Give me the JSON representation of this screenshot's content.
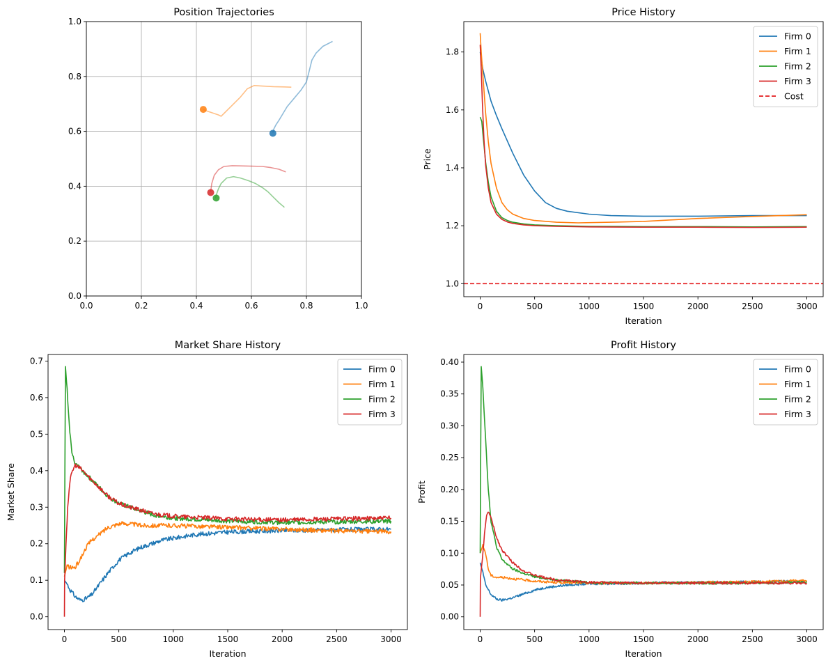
{
  "chart_data": [
    {
      "type": "line",
      "title": "Position Trajectories",
      "xlabel": "",
      "ylabel": "",
      "xlim": [
        0,
        1
      ],
      "ylim": [
        0,
        1
      ],
      "xticks": [
        0.0,
        0.2,
        0.4,
        0.6,
        0.8,
        1.0
      ],
      "yticks": [
        0.0,
        0.2,
        0.4,
        0.6,
        0.8,
        1.0
      ],
      "xtick_labels": [
        "0.0",
        "0.2",
        "0.4",
        "0.6",
        "0.8",
        "1.0"
      ],
      "ytick_labels": [
        "0.0",
        "0.2",
        "0.4",
        "0.6",
        "0.8",
        "1.0"
      ],
      "grid": true,
      "series": [
        {
          "color": "#1f77b4",
          "x": [
            0.895,
            0.86,
            0.835,
            0.82,
            0.81,
            0.8,
            0.78,
            0.755,
            0.73,
            0.712,
            0.7,
            0.69,
            0.682,
            0.678
          ],
          "y": [
            0.928,
            0.91,
            0.885,
            0.86,
            0.82,
            0.78,
            0.75,
            0.72,
            0.69,
            0.66,
            0.64,
            0.625,
            0.61,
            0.595
          ],
          "final": [
            0.678,
            0.593
          ]
        },
        {
          "color": "#ff7f0e",
          "x": [
            0.745,
            0.72,
            0.68,
            0.64,
            0.61,
            0.585,
            0.56,
            0.53,
            0.5,
            0.49,
            0.48,
            0.465,
            0.45,
            0.435,
            0.425
          ],
          "y": [
            0.761,
            0.762,
            0.763,
            0.765,
            0.767,
            0.755,
            0.725,
            0.695,
            0.665,
            0.655,
            0.66,
            0.665,
            0.67,
            0.675,
            0.68
          ],
          "final": [
            0.425,
            0.68
          ]
        },
        {
          "color": "#2ca02c",
          "x": [
            0.72,
            0.7,
            0.68,
            0.66,
            0.64,
            0.615,
            0.59,
            0.56,
            0.535,
            0.51,
            0.49,
            0.48,
            0.473,
            0.47
          ],
          "y": [
            0.323,
            0.34,
            0.36,
            0.38,
            0.395,
            0.41,
            0.42,
            0.43,
            0.435,
            0.43,
            0.41,
            0.39,
            0.37,
            0.357
          ],
          "final": [
            0.472,
            0.357
          ]
        },
        {
          "color": "#d62728",
          "x": [
            0.725,
            0.7,
            0.67,
            0.64,
            0.6,
            0.56,
            0.53,
            0.5,
            0.48,
            0.465,
            0.456,
            0.452
          ],
          "y": [
            0.452,
            0.462,
            0.468,
            0.472,
            0.473,
            0.474,
            0.475,
            0.472,
            0.46,
            0.44,
            0.41,
            0.38
          ],
          "final": [
            0.452,
            0.377
          ]
        }
      ]
    },
    {
      "type": "line",
      "title": "Price History",
      "xlabel": "Iteration",
      "ylabel": "Price",
      "xlim": [
        -150,
        3150
      ],
      "ylim": [
        0.955,
        1.905
      ],
      "xticks": [
        0,
        500,
        1000,
        1500,
        2000,
        2500,
        3000
      ],
      "yticks": [
        1.0,
        1.2,
        1.4,
        1.6,
        1.8
      ],
      "xtick_labels": [
        "0",
        "500",
        "1000",
        "1500",
        "2000",
        "2500",
        "3000"
      ],
      "ytick_labels": [
        "1.0",
        "1.2",
        "1.4",
        "1.6",
        "1.8"
      ],
      "grid": false,
      "legend": "top-right",
      "series": [
        {
          "name": "Firm 0",
          "color": "#1f77b4",
          "x": [
            0,
            25,
            50,
            100,
            150,
            200,
            300,
            400,
            500,
            600,
            700,
            800,
            1000,
            1200,
            1500,
            2000,
            2500,
            3000
          ],
          "y": [
            1.8,
            1.74,
            1.7,
            1.63,
            1.58,
            1.535,
            1.45,
            1.375,
            1.32,
            1.28,
            1.26,
            1.25,
            1.24,
            1.235,
            1.233,
            1.233,
            1.235,
            1.235
          ]
        },
        {
          "name": "Firm 1",
          "color": "#ff7f0e",
          "x": [
            0,
            10,
            25,
            50,
            75,
            100,
            150,
            200,
            250,
            300,
            400,
            500,
            700,
            900,
            1200,
            1500,
            2000,
            2500,
            3000
          ],
          "y": [
            1.865,
            1.8,
            1.72,
            1.59,
            1.49,
            1.415,
            1.33,
            1.28,
            1.255,
            1.24,
            1.225,
            1.218,
            1.212,
            1.21,
            1.212,
            1.215,
            1.225,
            1.232,
            1.238
          ]
        },
        {
          "name": "Firm 2",
          "color": "#2ca02c",
          "x": [
            0,
            15,
            30,
            50,
            75,
            100,
            150,
            200,
            250,
            300,
            400,
            500,
            700,
            1000,
            1500,
            2000,
            2500,
            3000
          ],
          "y": [
            1.575,
            1.56,
            1.5,
            1.42,
            1.35,
            1.3,
            1.25,
            1.228,
            1.218,
            1.212,
            1.206,
            1.203,
            1.2,
            1.198,
            1.197,
            1.197,
            1.196,
            1.197
          ]
        },
        {
          "name": "Firm 3",
          "color": "#d62728",
          "x": [
            0,
            10,
            20,
            35,
            50,
            75,
            100,
            150,
            200,
            250,
            300,
            400,
            500,
            700,
            1000,
            1500,
            2000,
            2500,
            3000
          ],
          "y": [
            1.825,
            1.74,
            1.63,
            1.5,
            1.41,
            1.33,
            1.28,
            1.24,
            1.222,
            1.213,
            1.208,
            1.203,
            1.2,
            1.198,
            1.196,
            1.195,
            1.195,
            1.194,
            1.195
          ]
        },
        {
          "name": "Cost",
          "color": "#e31a1c",
          "dashed": true,
          "x": [
            -150,
            3150
          ],
          "y": [
            1.0,
            1.0
          ]
        }
      ]
    },
    {
      "type": "line",
      "title": "Market Share History",
      "xlabel": "Iteration",
      "ylabel": "Market Share",
      "xlim": [
        -150,
        3150
      ],
      "ylim": [
        -0.035,
        0.718
      ],
      "xticks": [
        0,
        500,
        1000,
        1500,
        2000,
        2500,
        3000
      ],
      "yticks": [
        0.0,
        0.1,
        0.2,
        0.3,
        0.4,
        0.5,
        0.6,
        0.7
      ],
      "xtick_labels": [
        "0",
        "500",
        "1000",
        "1500",
        "2000",
        "2500",
        "3000"
      ],
      "ytick_labels": [
        "0.0",
        "0.1",
        "0.2",
        "0.3",
        "0.4",
        "0.5",
        "0.6",
        "0.7"
      ],
      "grid": false,
      "legend": "top-right",
      "series": [
        {
          "name": "Firm 0",
          "color": "#1f77b4",
          "x": [
            0,
            25,
            50,
            100,
            150,
            200,
            250,
            300,
            400,
            500,
            600,
            700,
            800,
            900,
            1000,
            1200,
            1500,
            2000,
            2500,
            3000
          ],
          "y": [
            0.1,
            0.09,
            0.075,
            0.055,
            0.045,
            0.05,
            0.06,
            0.08,
            0.12,
            0.155,
            0.175,
            0.19,
            0.2,
            0.21,
            0.215,
            0.225,
            0.232,
            0.236,
            0.238,
            0.24
          ]
        },
        {
          "name": "Firm 1",
          "color": "#ff7f0e",
          "x": [
            0,
            25,
            50,
            100,
            150,
            200,
            250,
            300,
            400,
            500,
            600,
            700,
            800,
            1000,
            1500,
            2000,
            2500,
            3000
          ],
          "y": [
            0.11,
            0.14,
            0.135,
            0.135,
            0.16,
            0.19,
            0.21,
            0.22,
            0.245,
            0.255,
            0.255,
            0.25,
            0.25,
            0.25,
            0.245,
            0.24,
            0.235,
            0.233
          ]
        },
        {
          "name": "Firm 2",
          "color": "#2ca02c",
          "x": [
            0,
            10,
            25,
            50,
            75,
            100,
            150,
            200,
            300,
            400,
            500,
            600,
            700,
            800,
            1000,
            1500,
            2000,
            2500,
            3000
          ],
          "y": [
            0.12,
            0.685,
            0.62,
            0.5,
            0.44,
            0.42,
            0.405,
            0.39,
            0.36,
            0.33,
            0.31,
            0.3,
            0.29,
            0.28,
            0.27,
            0.262,
            0.258,
            0.26,
            0.262
          ]
        },
        {
          "name": "Firm 3",
          "color": "#d62728",
          "x": [
            0,
            2,
            15,
            30,
            50,
            75,
            100,
            150,
            200,
            300,
            400,
            500,
            600,
            700,
            800,
            1000,
            1500,
            2000,
            2500,
            3000
          ],
          "y": [
            0.0,
            0.1,
            0.2,
            0.3,
            0.37,
            0.4,
            0.415,
            0.405,
            0.39,
            0.36,
            0.33,
            0.31,
            0.3,
            0.292,
            0.283,
            0.275,
            0.268,
            0.265,
            0.268,
            0.27
          ]
        }
      ]
    },
    {
      "type": "line",
      "title": "Profit History",
      "xlabel": "Iteration",
      "ylabel": "Profit",
      "xlim": [
        -150,
        3150
      ],
      "ylim": [
        -0.02,
        0.412
      ],
      "xticks": [
        0,
        500,
        1000,
        1500,
        2000,
        2500,
        3000
      ],
      "yticks": [
        0.0,
        0.05,
        0.1,
        0.15,
        0.2,
        0.25,
        0.3,
        0.35,
        0.4
      ],
      "xtick_labels": [
        "0",
        "500",
        "1000",
        "1500",
        "2000",
        "2500",
        "3000"
      ],
      "ytick_labels": [
        "0.00",
        "0.05",
        "0.10",
        "0.15",
        "0.20",
        "0.25",
        "0.30",
        "0.35",
        "0.40"
      ],
      "grid": false,
      "legend": "top-right",
      "series": [
        {
          "name": "Firm 0",
          "color": "#1f77b4",
          "x": [
            0,
            25,
            50,
            100,
            150,
            200,
            300,
            400,
            500,
            600,
            800,
            1000,
            1500,
            2000,
            2500,
            3000
          ],
          "y": [
            0.085,
            0.07,
            0.05,
            0.035,
            0.028,
            0.026,
            0.03,
            0.036,
            0.042,
            0.046,
            0.05,
            0.052,
            0.053,
            0.054,
            0.055,
            0.056
          ]
        },
        {
          "name": "Firm 1",
          "color": "#ff7f0e",
          "x": [
            0,
            25,
            50,
            75,
            100,
            150,
            200,
            300,
            400,
            500,
            700,
            1000,
            1500,
            2000,
            2500,
            3000
          ],
          "y": [
            0.1,
            0.112,
            0.1,
            0.075,
            0.065,
            0.062,
            0.062,
            0.06,
            0.058,
            0.056,
            0.054,
            0.053,
            0.053,
            0.054,
            0.055,
            0.057
          ]
        },
        {
          "name": "Firm 2",
          "color": "#2ca02c",
          "x": [
            0,
            10,
            25,
            50,
            75,
            100,
            150,
            200,
            300,
            400,
            500,
            700,
            1000,
            1500,
            2000,
            2500,
            3000
          ],
          "y": [
            0.1,
            0.393,
            0.36,
            0.28,
            0.2,
            0.15,
            0.11,
            0.09,
            0.075,
            0.068,
            0.063,
            0.058,
            0.054,
            0.053,
            0.053,
            0.053,
            0.054
          ]
        },
        {
          "name": "Firm 3",
          "color": "#d62728",
          "x": [
            0,
            2,
            20,
            40,
            60,
            80,
            100,
            125,
            150,
            200,
            300,
            400,
            500,
            700,
            1000,
            1500,
            2000,
            2500,
            3000
          ],
          "y": [
            0.0,
            0.06,
            0.09,
            0.13,
            0.16,
            0.165,
            0.155,
            0.14,
            0.125,
            0.105,
            0.085,
            0.072,
            0.065,
            0.058,
            0.054,
            0.053,
            0.053,
            0.053,
            0.053
          ]
        }
      ]
    }
  ]
}
